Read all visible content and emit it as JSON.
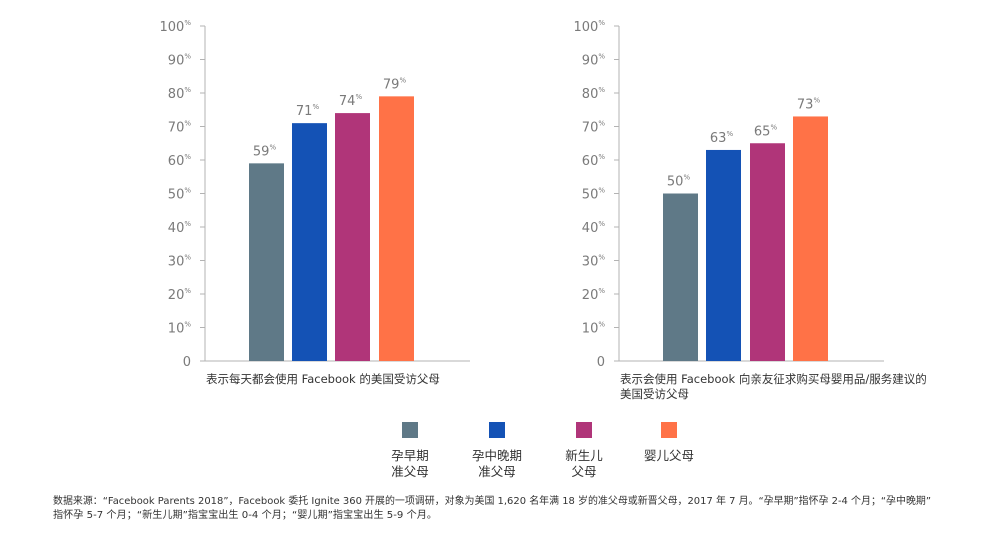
{
  "palette": {
    "early": "#5f7987",
    "mid_late": "#1452b5",
    "newborn": "#b03579",
    "infant": "#ff7247",
    "axis": "#b3b3b3"
  },
  "chart_data": [
    {
      "type": "bar",
      "caption": "表示每天都会使用 Facebook 的美国受访父母",
      "categories": [
        "孕早期准父母",
        "孕中晚期准父母",
        "新生儿父母",
        "婴儿父母"
      ],
      "values": [
        59,
        71,
        74,
        79
      ],
      "ylim": [
        0,
        100
      ],
      "yticks": [
        0,
        10,
        20,
        30,
        40,
        50,
        60,
        70,
        80,
        90,
        100
      ],
      "tick_suffix": "%",
      "grid": false
    },
    {
      "type": "bar",
      "caption_lines": [
        "表示会使用 Facebook 向亲友征求购买母婴用品/服务建议的",
        "美国受访父母"
      ],
      "categories": [
        "孕早期准父母",
        "孕中晚期准父母",
        "新生儿父母",
        "婴儿父母"
      ],
      "values": [
        50,
        63,
        65,
        73
      ],
      "ylim": [
        0,
        100
      ],
      "yticks": [
        0,
        10,
        20,
        30,
        40,
        50,
        60,
        70,
        80,
        90,
        100
      ],
      "tick_suffix": "%",
      "grid": false
    }
  ],
  "legend": [
    {
      "lines": [
        "孕早期",
        "准父母"
      ],
      "color_key": "early"
    },
    {
      "lines": [
        "孕中晚期",
        "准父母"
      ],
      "color_key": "mid_late"
    },
    {
      "lines": [
        "新生儿",
        "父母"
      ],
      "color_key": "newborn"
    },
    {
      "lines": [
        "婴儿父母"
      ],
      "color_key": "infant"
    }
  ],
  "source_lines": [
    "数据来源：“Facebook Parents 2018”，Facebook 委托 Ignite 360 开展的一项调研，对象为美国 1,620 名年满 18 岁的准父母或新晋父母，2017 年 7 月。“孕早期”指怀孕 2-4 个月；“孕中晚期”",
    "指怀孕 5-7 个月；“新生儿期”指宝宝出生 0-4 个月；“婴儿期”指宝宝出生 5-9 个月。"
  ]
}
